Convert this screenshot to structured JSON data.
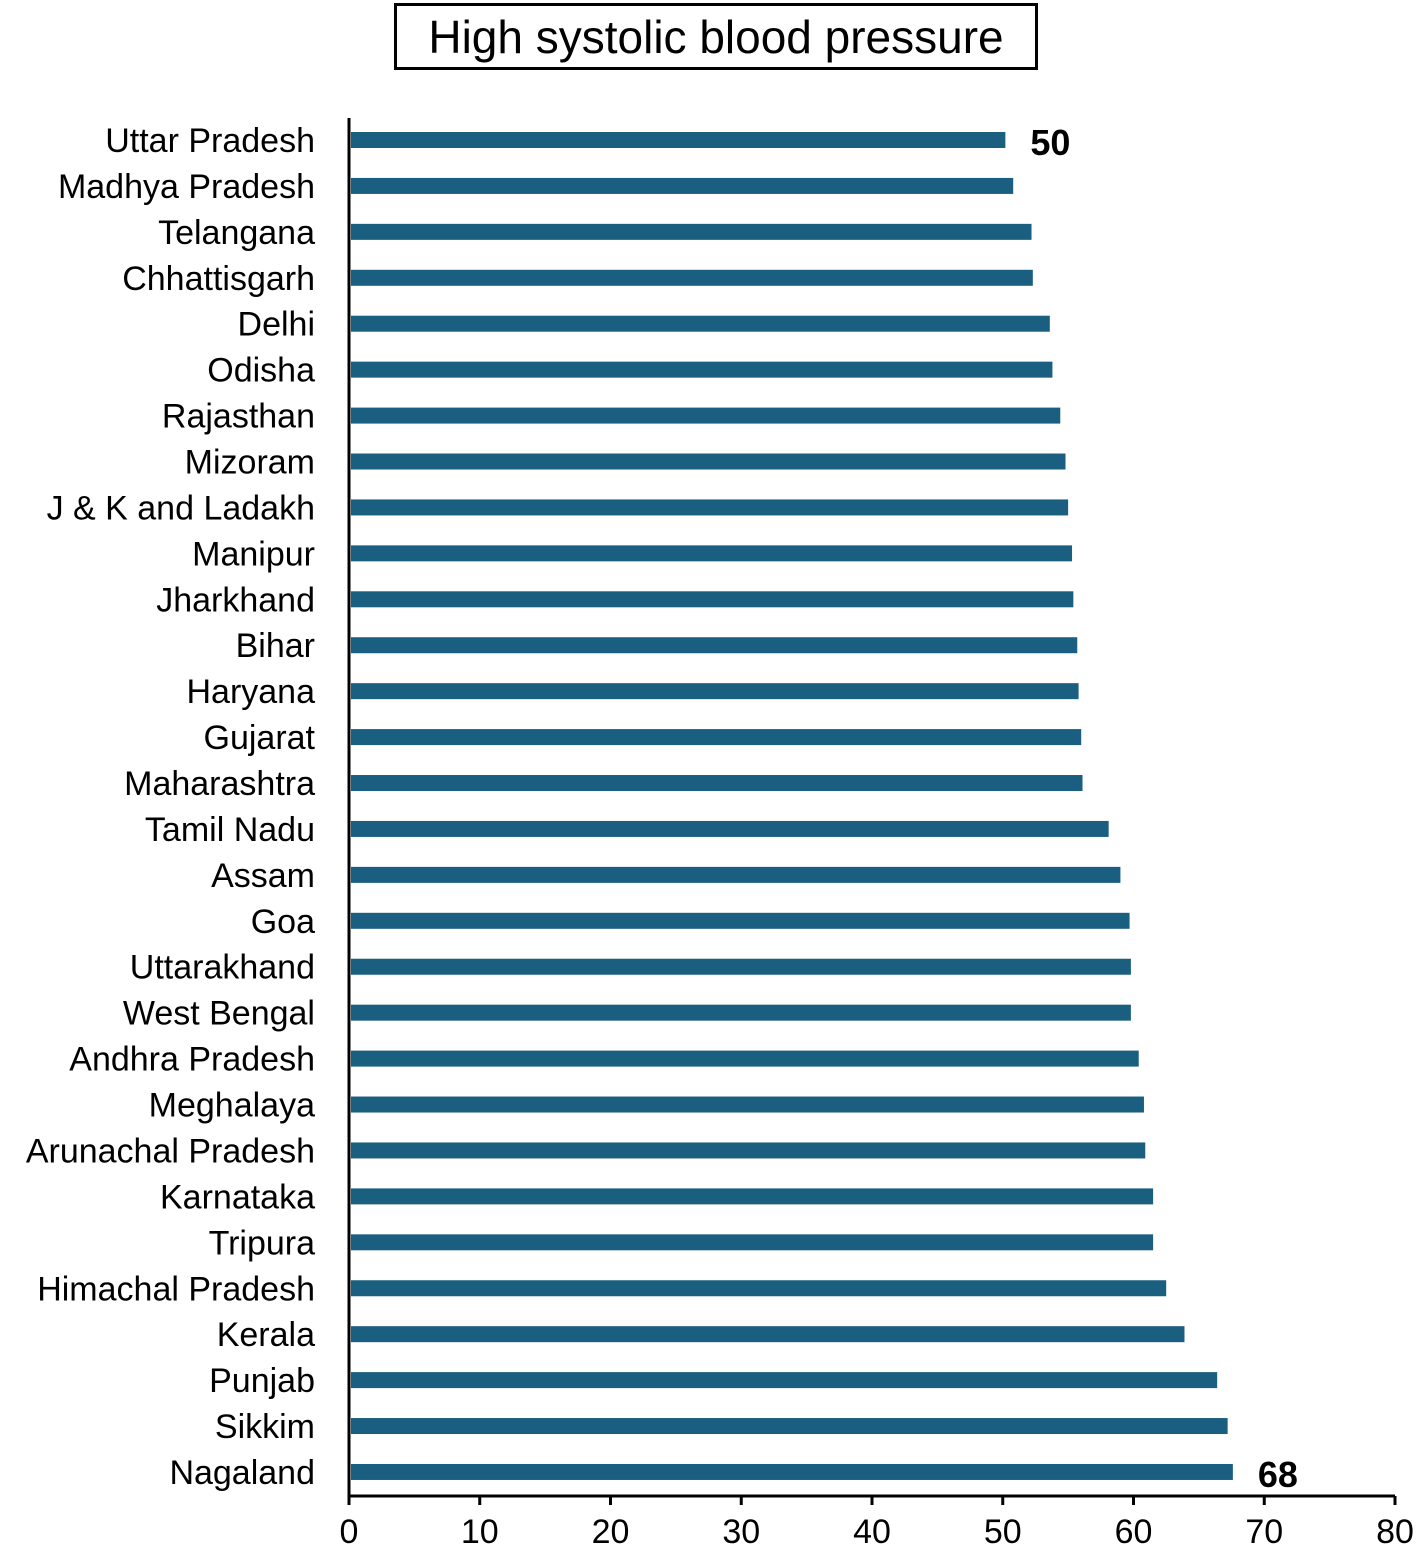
{
  "chart_data": {
    "type": "bar",
    "orientation": "horizontal",
    "title": "High systolic blood pressure",
    "xlabel": "",
    "ylabel": "",
    "xlim": [
      0,
      80
    ],
    "x_ticks": [
      0,
      10,
      20,
      30,
      40,
      50,
      60,
      70,
      80
    ],
    "grid": false,
    "bar_color": "#1b5f80",
    "categories": [
      "Uttar Pradesh",
      "Madhya Pradesh",
      "Telangana",
      "Chhattisgarh",
      "Delhi",
      "Odisha",
      "Rajasthan",
      "Mizoram",
      "J & K and Ladakh",
      "Manipur",
      "Jharkhand",
      "Bihar",
      "Haryana",
      "Gujarat",
      "Maharashtra",
      "Tamil Nadu",
      "Assam",
      "Goa",
      "Uttarakhand",
      "West Bengal",
      "Andhra Pradesh",
      "Meghalaya",
      "Arunachal Pradesh",
      "Karnataka",
      "Tripura",
      "Himachal Pradesh",
      "Kerala",
      "Punjab",
      "Sikkim",
      "Nagaland"
    ],
    "values": [
      50.2,
      50.8,
      52.2,
      52.3,
      53.6,
      53.8,
      54.4,
      54.8,
      55.0,
      55.3,
      55.4,
      55.7,
      55.8,
      56.0,
      56.1,
      58.1,
      59.0,
      59.7,
      59.8,
      59.8,
      60.4,
      60.8,
      60.9,
      61.5,
      61.5,
      62.5,
      63.9,
      66.4,
      67.2,
      67.6
    ],
    "annotations": [
      {
        "category": "Uttar Pradesh",
        "text": "50"
      },
      {
        "category": "Nagaland",
        "text": "68"
      }
    ]
  }
}
